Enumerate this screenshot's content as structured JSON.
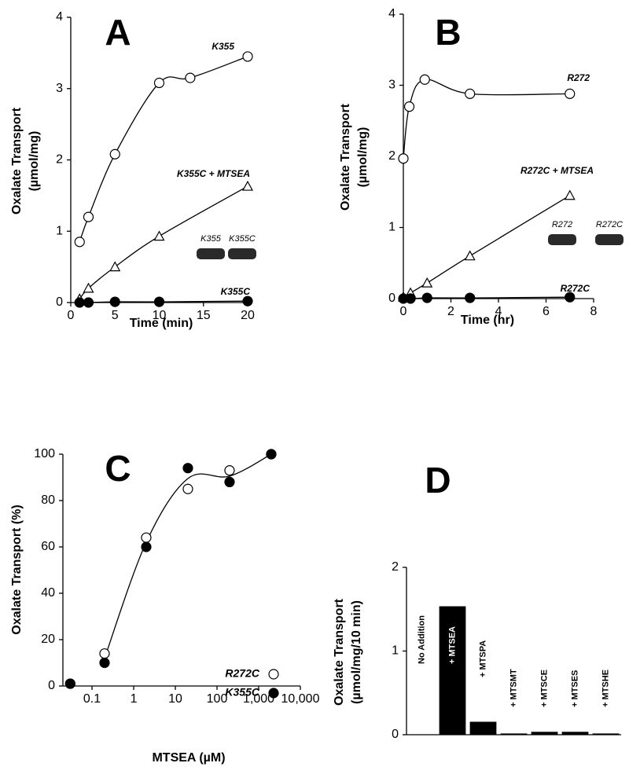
{
  "chart_data": [
    {
      "type": "line",
      "title": "A",
      "xlabel": "Time (min)",
      "ylabel": [
        "Oxalate Transport",
        "(µmol/mg)"
      ],
      "xlim": [
        0,
        20
      ],
      "ylim": [
        0,
        4
      ],
      "xticks": [
        0,
        5,
        10,
        15,
        20
      ],
      "yticks": [
        0,
        1,
        2,
        3,
        4
      ],
      "series": [
        {
          "name": "K355",
          "marker": "open-circle",
          "color": "#000000",
          "x": [
            1,
            2,
            5,
            10,
            13.5,
            20
          ],
          "values": [
            0.85,
            1.2,
            2.08,
            3.08,
            3.15,
            3.45
          ]
        },
        {
          "name": "K355C + MTSEA",
          "marker": "open-triangle",
          "color": "#000000",
          "x": [
            1,
            2,
            5,
            10,
            20
          ],
          "values": [
            0.05,
            0.2,
            0.5,
            0.93,
            1.63
          ]
        },
        {
          "name": "K355C",
          "marker": "filled-circle",
          "color": "#000000",
          "x": [
            1,
            2,
            5,
            10,
            20
          ],
          "values": [
            0,
            0,
            0.01,
            0.01,
            0.02
          ]
        }
      ],
      "inset_labels": [
        "K355",
        "K355C"
      ]
    },
    {
      "type": "line",
      "title": "B",
      "xlabel": "Time (hr)",
      "ylabel": [
        "Oxalate Transport",
        "(µmol/mg)"
      ],
      "xlim": [
        0,
        8
      ],
      "ylim": [
        0,
        4
      ],
      "xticks": [
        0,
        2,
        4,
        6,
        8
      ],
      "yticks": [
        0,
        1,
        2,
        3,
        4
      ],
      "series": [
        {
          "name": "R272",
          "marker": "open-circle",
          "color": "#000000",
          "x": [
            0,
            0.25,
            0.9,
            2.8,
            7
          ],
          "values": [
            1.97,
            2.7,
            3.08,
            2.88,
            2.88
          ]
        },
        {
          "name": "R272C + MTSEA",
          "marker": "open-triangle",
          "color": "#000000",
          "x": [
            0,
            0.3,
            1,
            2.8,
            7
          ],
          "values": [
            0.02,
            0.08,
            0.22,
            0.6,
            1.45
          ]
        },
        {
          "name": "R272C",
          "marker": "filled-circle",
          "color": "#000000",
          "x": [
            0,
            0.3,
            1,
            2.8,
            7
          ],
          "values": [
            0,
            0,
            0.01,
            0.01,
            0.02
          ]
        }
      ],
      "inset_labels": [
        "R272",
        "R272C"
      ]
    },
    {
      "type": "scatter",
      "title": "C",
      "xlabel": "MTSEA (µM)",
      "ylabel": [
        "Oxalate Transport (%)"
      ],
      "log_x": true,
      "xlim": [
        0.02,
        10000
      ],
      "ylim": [
        0,
        100
      ],
      "xticks": [
        0.1,
        1,
        10,
        100,
        {
          "value": 1000,
          "label": "1,000"
        },
        {
          "value": 10000,
          "label": "10,000"
        }
      ],
      "yticks": [
        0,
        20,
        40,
        60,
        80,
        100
      ],
      "legend": "lower right",
      "series": [
        {
          "name": "R272C",
          "marker": "open-circle",
          "color": "#000000",
          "x": [
            0.03,
            0.2,
            2,
            20,
            200,
            2000
          ],
          "values": [
            1,
            14,
            64,
            85,
            93,
            100
          ]
        },
        {
          "name": "K355C",
          "marker": "filled-circle",
          "color": "#000000",
          "x": [
            0.03,
            0.2,
            2,
            20,
            200,
            2000
          ],
          "values": [
            1,
            10,
            60,
            94,
            88,
            100
          ]
        }
      ]
    },
    {
      "type": "bar",
      "title": "D",
      "ylabel": [
        "Oxalate Transport",
        "(µmol/mg/10 min)"
      ],
      "categories": [
        "No Addition",
        "+ MTSEA",
        "+ MTSPA",
        "+ MTSMT",
        "+ MTSCE",
        "+ MTSES",
        "+ MTSHE"
      ],
      "values": [
        0,
        1.53,
        0.15,
        0.01,
        0.03,
        0.03,
        0.01
      ],
      "color": "#000000",
      "ylim": [
        0,
        2
      ],
      "yticks": [
        0,
        1,
        2
      ]
    }
  ]
}
